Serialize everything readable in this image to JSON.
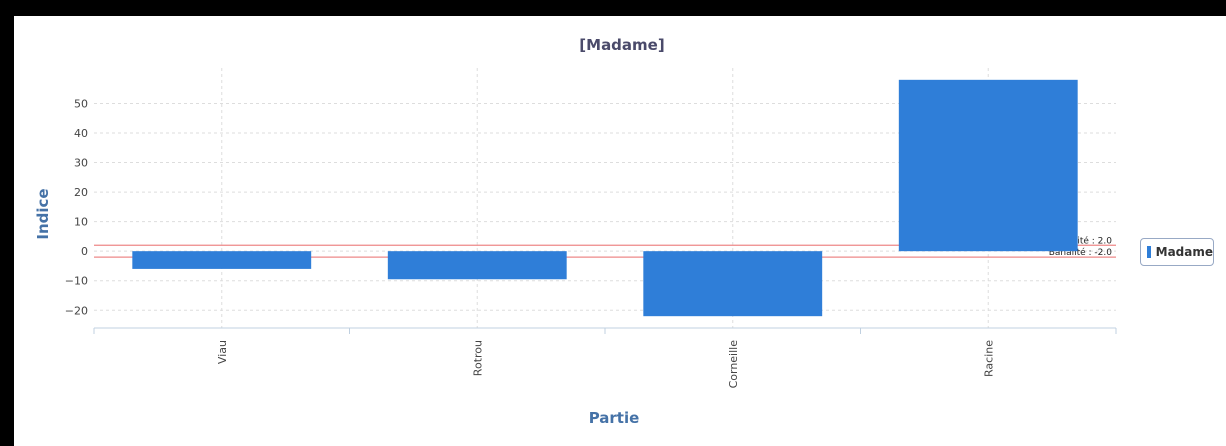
{
  "chart_data": {
    "type": "bar",
    "title": "[Madame]",
    "xlabel": "Partie",
    "ylabel": "Indice",
    "categories": [
      "Viau",
      "Rotrou",
      "Corneille",
      "Racine"
    ],
    "series": [
      {
        "name": "Madame",
        "values": [
          -6,
          -9.5,
          -22,
          58
        ],
        "color": "#2f7ed8"
      }
    ],
    "ylim": [
      -26,
      62
    ],
    "yticks": [
      -20,
      -10,
      0,
      10,
      20,
      30,
      40,
      50
    ],
    "plot_lines": [
      {
        "label": "Banalité : 2.0",
        "value": 2,
        "color": "#e88"
      },
      {
        "label": "Banalité : -2.0",
        "value": -2,
        "color": "#e88"
      }
    ],
    "grid": true,
    "legend_position": "right"
  }
}
